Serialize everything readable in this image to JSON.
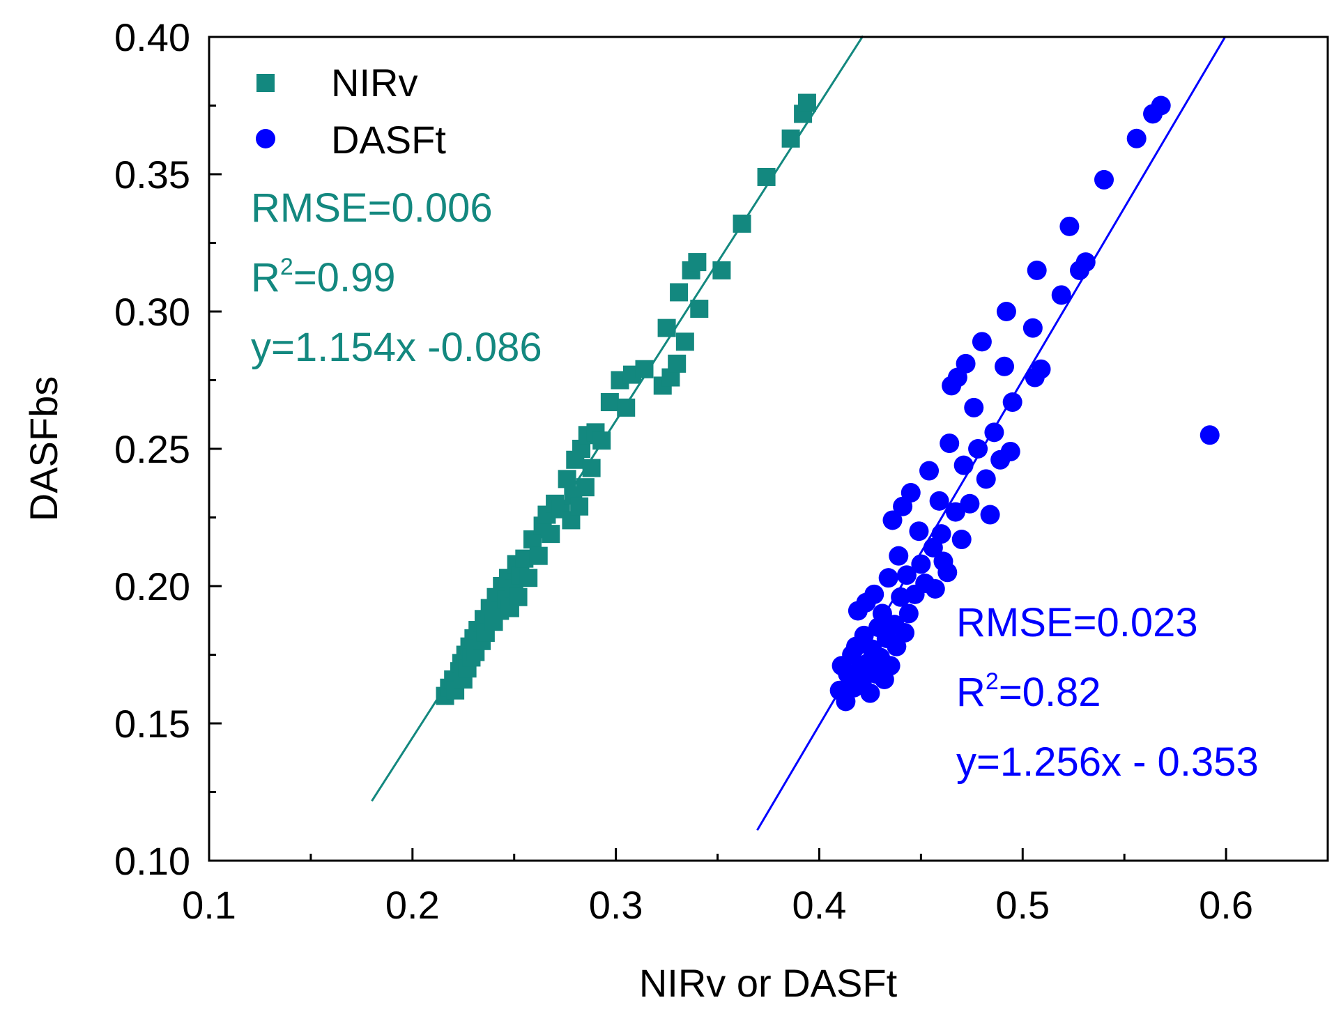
{
  "chart_data": {
    "type": "scatter",
    "title": "",
    "xlabel": "NIRv or DASFt",
    "ylabel": "DASFbs",
    "xlim": [
      0.1,
      0.65
    ],
    "ylim": [
      0.1,
      0.4
    ],
    "x_ticks": [
      0.1,
      0.2,
      0.3,
      0.4,
      0.5,
      0.6
    ],
    "x_tick_labels": [
      "0.1",
      "0.2",
      "0.3",
      "0.4",
      "0.5",
      "0.6"
    ],
    "y_ticks": [
      0.1,
      0.15,
      0.2,
      0.25,
      0.3,
      0.35,
      0.4
    ],
    "y_tick_labels": [
      "0.10",
      "0.15",
      "0.20",
      "0.25",
      "0.30",
      "0.35",
      "0.40"
    ],
    "grid": false,
    "legend_position": "top-left",
    "series": [
      {
        "name": "NIRv",
        "marker": "square",
        "color": "#13887f",
        "fit": {
          "slope": 1.154,
          "intercept": -0.086,
          "x_range": [
            0.18,
            0.4215
          ]
        },
        "annotation": {
          "rmse": "RMSE=0.006",
          "r2_prefix": "R",
          "r2_sup": "2",
          "r2_value": "=0.99",
          "equation": "y=1.154x -0.086"
        },
        "points": [
          [
            0.216,
            0.16
          ],
          [
            0.218,
            0.163
          ],
          [
            0.22,
            0.166
          ],
          [
            0.221,
            0.162
          ],
          [
            0.223,
            0.169
          ],
          [
            0.224,
            0.172
          ],
          [
            0.225,
            0.166
          ],
          [
            0.226,
            0.175
          ],
          [
            0.227,
            0.17
          ],
          [
            0.228,
            0.178
          ],
          [
            0.229,
            0.174
          ],
          [
            0.23,
            0.181
          ],
          [
            0.231,
            0.176
          ],
          [
            0.232,
            0.184
          ],
          [
            0.234,
            0.18
          ],
          [
            0.235,
            0.188
          ],
          [
            0.236,
            0.183
          ],
          [
            0.238,
            0.192
          ],
          [
            0.24,
            0.187
          ],
          [
            0.241,
            0.196
          ],
          [
            0.243,
            0.191
          ],
          [
            0.244,
            0.2
          ],
          [
            0.246,
            0.195
          ],
          [
            0.247,
            0.203
          ],
          [
            0.248,
            0.192
          ],
          [
            0.25,
            0.199
          ],
          [
            0.251,
            0.208
          ],
          [
            0.252,
            0.196
          ],
          [
            0.253,
            0.204
          ],
          [
            0.255,
            0.21
          ],
          [
            0.257,
            0.203
          ],
          [
            0.259,
            0.217
          ],
          [
            0.262,
            0.211
          ],
          [
            0.264,
            0.222
          ],
          [
            0.266,
            0.226
          ],
          [
            0.268,
            0.219
          ],
          [
            0.27,
            0.23
          ],
          [
            0.273,
            0.228
          ],
          [
            0.276,
            0.239
          ],
          [
            0.278,
            0.224
          ],
          [
            0.279,
            0.233
          ],
          [
            0.28,
            0.246
          ],
          [
            0.282,
            0.229
          ],
          [
            0.283,
            0.25
          ],
          [
            0.285,
            0.236
          ],
          [
            0.286,
            0.255
          ],
          [
            0.288,
            0.243
          ],
          [
            0.29,
            0.256
          ],
          [
            0.293,
            0.253
          ],
          [
            0.297,
            0.267
          ],
          [
            0.302,
            0.275
          ],
          [
            0.305,
            0.265
          ],
          [
            0.308,
            0.277
          ],
          [
            0.314,
            0.279
          ],
          [
            0.323,
            0.273
          ],
          [
            0.325,
            0.294
          ],
          [
            0.327,
            0.276
          ],
          [
            0.33,
            0.281
          ],
          [
            0.331,
            0.307
          ],
          [
            0.334,
            0.289
          ],
          [
            0.337,
            0.315
          ],
          [
            0.34,
            0.318
          ],
          [
            0.341,
            0.301
          ],
          [
            0.352,
            0.315
          ],
          [
            0.362,
            0.332
          ],
          [
            0.374,
            0.349
          ],
          [
            0.386,
            0.363
          ],
          [
            0.392,
            0.372
          ],
          [
            0.394,
            0.376
          ]
        ]
      },
      {
        "name": "DASFt",
        "marker": "circle",
        "color": "#0000ff",
        "fit": {
          "slope": 1.256,
          "intercept": -0.353,
          "x_range": [
            0.3695,
            0.5995
          ]
        },
        "annotation": {
          "rmse": "RMSE=0.023",
          "r2_prefix": "R",
          "r2_sup": "2",
          "r2_value": "=0.82",
          "equation": "y=1.256x - 0.353"
        },
        "points": [
          [
            0.41,
            0.162
          ],
          [
            0.411,
            0.171
          ],
          [
            0.413,
            0.158
          ],
          [
            0.414,
            0.168
          ],
          [
            0.416,
            0.175
          ],
          [
            0.417,
            0.163
          ],
          [
            0.418,
            0.178
          ],
          [
            0.419,
            0.191
          ],
          [
            0.42,
            0.17
          ],
          [
            0.421,
            0.165
          ],
          [
            0.422,
            0.182
          ],
          [
            0.423,
            0.194
          ],
          [
            0.424,
            0.172
          ],
          [
            0.425,
            0.161
          ],
          [
            0.426,
            0.177
          ],
          [
            0.427,
            0.197
          ],
          [
            0.428,
            0.168
          ],
          [
            0.429,
            0.185
          ],
          [
            0.43,
            0.174
          ],
          [
            0.431,
            0.19
          ],
          [
            0.432,
            0.166
          ],
          [
            0.433,
            0.181
          ],
          [
            0.434,
            0.203
          ],
          [
            0.435,
            0.171
          ],
          [
            0.436,
            0.224
          ],
          [
            0.437,
            0.186
          ],
          [
            0.438,
            0.178
          ],
          [
            0.439,
            0.211
          ],
          [
            0.44,
            0.196
          ],
          [
            0.441,
            0.229
          ],
          [
            0.442,
            0.183
          ],
          [
            0.443,
            0.204
          ],
          [
            0.444,
            0.19
          ],
          [
            0.445,
            0.234
          ],
          [
            0.447,
            0.197
          ],
          [
            0.449,
            0.22
          ],
          [
            0.45,
            0.208
          ],
          [
            0.452,
            0.201
          ],
          [
            0.454,
            0.242
          ],
          [
            0.456,
            0.214
          ],
          [
            0.457,
            0.199
          ],
          [
            0.459,
            0.231
          ],
          [
            0.46,
            0.219
          ],
          [
            0.461,
            0.209
          ],
          [
            0.463,
            0.205
          ],
          [
            0.464,
            0.252
          ],
          [
            0.465,
            0.273
          ],
          [
            0.467,
            0.227
          ],
          [
            0.468,
            0.276
          ],
          [
            0.47,
            0.217
          ],
          [
            0.471,
            0.244
          ],
          [
            0.472,
            0.281
          ],
          [
            0.474,
            0.23
          ],
          [
            0.476,
            0.265
          ],
          [
            0.478,
            0.25
          ],
          [
            0.48,
            0.289
          ],
          [
            0.482,
            0.239
          ],
          [
            0.484,
            0.226
          ],
          [
            0.486,
            0.256
          ],
          [
            0.489,
            0.246
          ],
          [
            0.491,
            0.28
          ],
          [
            0.492,
            0.3
          ],
          [
            0.494,
            0.249
          ],
          [
            0.495,
            0.267
          ],
          [
            0.505,
            0.294
          ],
          [
            0.506,
            0.276
          ],
          [
            0.507,
            0.315
          ],
          [
            0.509,
            0.279
          ],
          [
            0.519,
            0.306
          ],
          [
            0.523,
            0.331
          ],
          [
            0.528,
            0.315
          ],
          [
            0.531,
            0.318
          ],
          [
            0.54,
            0.348
          ],
          [
            0.556,
            0.363
          ],
          [
            0.564,
            0.372
          ],
          [
            0.568,
            0.375
          ],
          [
            0.592,
            0.255
          ]
        ]
      }
    ]
  }
}
